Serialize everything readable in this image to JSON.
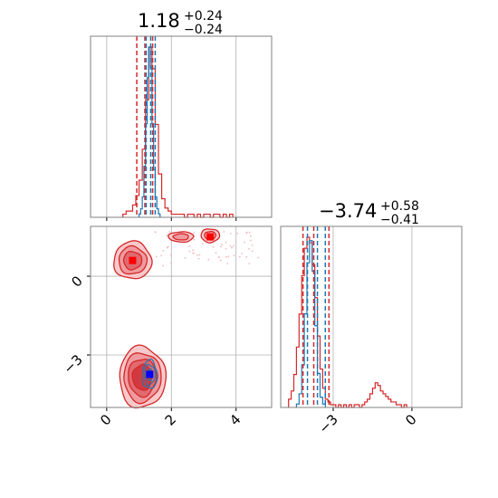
{
  "chart_data": {
    "type": "corner",
    "colors": {
      "red": "#d62728",
      "blue": "#1f77b4",
      "marker_red": "#ff0000",
      "marker_blue": "#0000ff",
      "grid": "#b0b0b0",
      "frame": "#808080"
    },
    "params": [
      {
        "title": {
          "median": "1.18",
          "plus": "+0.24",
          "minus": "−0.24"
        },
        "xlim": [
          -0.5,
          5.1
        ],
        "ticks": [
          0,
          2,
          4
        ],
        "tick_labels": [
          "0",
          "2",
          "4"
        ],
        "red_lines": [
          0.93,
          1.18,
          1.42
        ],
        "blue_lines": [
          1.22,
          1.36,
          1.5
        ],
        "red_hist": {
          "edges_start": 0.5,
          "bin": 0.1,
          "counts": [
            0.01,
            0.02,
            0.02,
            0.04,
            0.07,
            0.12,
            0.22,
            0.38,
            0.55,
            0.48,
            0.3,
            0.14,
            0.06,
            0.03,
            0.02,
            0.01,
            0.01,
            0.01,
            0.01,
            0.0,
            0.01,
            0.01,
            0.0,
            0.01,
            0.0,
            0.01,
            0.01,
            0.0,
            0.01,
            0.01,
            0.0,
            0.01,
            0.0,
            0.01
          ]
        },
        "blue_hist": {
          "edges_start": 1.0,
          "bin": 0.05,
          "counts": [
            0.02,
            0.05,
            0.12,
            0.3,
            0.55,
            0.82,
            1.0,
            0.88,
            0.55,
            0.28,
            0.12,
            0.05,
            0.02
          ]
        }
      },
      {
        "title": {
          "median": "−3.74",
          "plus": "+0.58",
          "minus": "−0.41"
        },
        "xlim": [
          -5.0,
          1.9
        ],
        "ticks": [
          -3,
          0
        ],
        "tick_labels": [
          "−3",
          "0"
        ],
        "red_lines": [
          -4.15,
          -3.74,
          -3.16
        ],
        "blue_lines": [
          -3.98,
          -3.6,
          -3.3
        ],
        "red_hist": {
          "edges_start": -4.7,
          "bin": 0.1,
          "counts": [
            0.03,
            0.06,
            0.12,
            0.22,
            0.34,
            0.48,
            0.58,
            0.62,
            0.6,
            0.52,
            0.4,
            0.26,
            0.14,
            0.07,
            0.03,
            0.02,
            0.01,
            0.01,
            0.0,
            0.01,
            0.0,
            0.01,
            0.0,
            0.01,
            0.0,
            0.01,
            0.01,
            0.0,
            0.01,
            0.02,
            0.03,
            0.05,
            0.07,
            0.09,
            0.08,
            0.06,
            0.05,
            0.04,
            0.03,
            0.02,
            0.02,
            0.01,
            0.01,
            0.0,
            0.01
          ]
        },
        "blue_hist": {
          "edges_start": -4.4,
          "bin": 0.1,
          "counts": [
            0.02,
            0.08,
            0.25,
            0.55,
            0.85,
            0.98,
            0.8,
            0.48,
            0.2,
            0.06,
            0.02
          ]
        }
      }
    ],
    "joint": {
      "xlim": [
        -0.5,
        5.1
      ],
      "ylim": [
        -5.0,
        1.9
      ],
      "red_modes": [
        {
          "x": 0.8,
          "y": 0.6,
          "sx": 0.45,
          "sy": 0.55,
          "levels": 3
        },
        {
          "x": 1.1,
          "y": -3.85,
          "sx": 0.55,
          "sy": 0.9,
          "levels": 4
        },
        {
          "x": 3.2,
          "y": 1.55,
          "sx": 0.22,
          "sy": 0.2,
          "levels": 2
        },
        {
          "x": 2.3,
          "y": 1.5,
          "sx": 0.3,
          "sy": 0.15,
          "levels": 2
        }
      ],
      "blue_mode": {
        "x": 1.33,
        "y": -3.75,
        "sx": 0.18,
        "sy": 0.42
      },
      "red_markers": [
        {
          "x": 0.8,
          "y": 0.6
        },
        {
          "x": 3.2,
          "y": 1.5
        }
      ],
      "blue_marker": {
        "x": 1.33,
        "y": -3.74
      }
    }
  }
}
